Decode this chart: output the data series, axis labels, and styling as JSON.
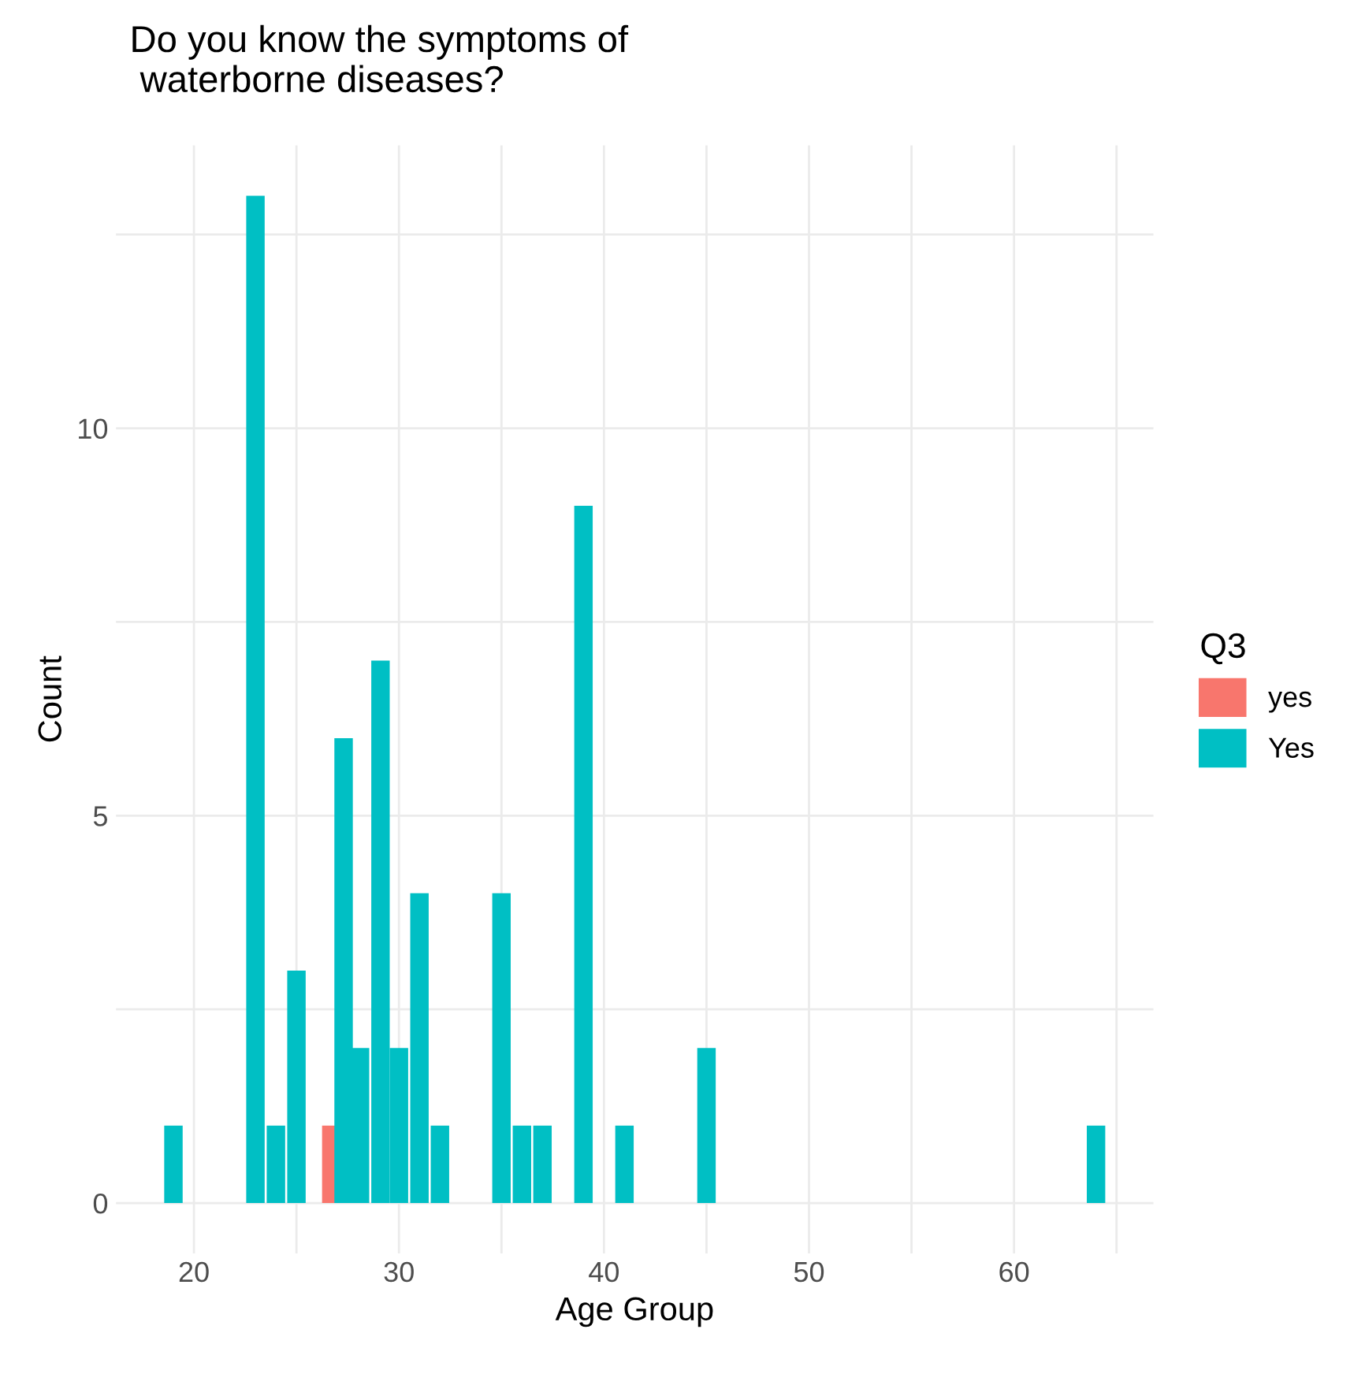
{
  "chart_data": {
    "type": "bar",
    "title": "Do you know the symptoms of\n waterborne diseases?",
    "xlabel": "Age Group",
    "ylabel": "Count",
    "legend_title": "Q3",
    "series": [
      {
        "name": "yes",
        "color": "#f8766d",
        "x": [
          26.7
        ],
        "values": [
          1
        ]
      },
      {
        "name": "Yes",
        "color": "#00bfc4",
        "x": [
          19,
          23,
          24,
          25,
          27.3,
          28.1,
          29.1,
          30,
          31,
          32,
          35,
          36,
          37,
          39,
          41,
          45,
          64
        ],
        "values": [
          1,
          13,
          1,
          3,
          6,
          2,
          7,
          2,
          4,
          1,
          4,
          1,
          1,
          9,
          1,
          2,
          1
        ]
      }
    ],
    "xlim": [
      16.2,
      66.8
    ],
    "xticks": [
      20,
      {
        "value": 25,
        "label": null
      },
      30,
      {
        "value": 35,
        "label": null
      },
      40,
      {
        "value": 45,
        "label": null
      },
      50,
      {
        "value": 55,
        "label": null
      },
      60,
      {
        "value": 65,
        "label": null
      }
    ],
    "ylim": [
      -0.65,
      13.65
    ],
    "yticks": [
      0,
      {
        "value": 2.5,
        "label": null
      },
      5,
      {
        "value": 7.5,
        "label": null
      },
      10,
      {
        "value": 12.5,
        "label": null
      }
    ],
    "grid": true,
    "legend": "right"
  }
}
